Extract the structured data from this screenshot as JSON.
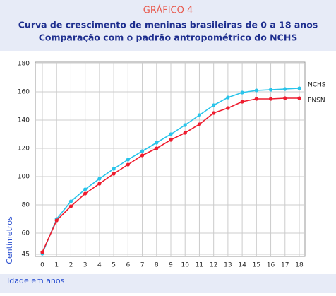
{
  "chart_data": {
    "type": "line",
    "header": "GRÁFICO 4",
    "title": "Curva de crescimento de meninas brasileiras de 0 a 18 anos",
    "subtitle": "Comparação com o padrão antropométrico do NCHS",
    "ylabel": "Centímetros",
    "xlabel": "Idade em anos",
    "x": [
      0,
      1,
      2,
      3,
      4,
      5,
      6,
      7,
      8,
      9,
      10,
      11,
      12,
      13,
      14,
      15,
      16,
      17,
      18
    ],
    "xlim": [
      0,
      18
    ],
    "xticks": [
      0,
      1,
      2,
      3,
      4,
      5,
      6,
      7,
      8,
      9,
      10,
      11,
      12,
      13,
      14,
      15,
      16,
      17,
      18
    ],
    "ylim": [
      45,
      180
    ],
    "yticks": [
      45,
      60,
      80,
      100,
      120,
      140,
      160,
      180
    ],
    "grid": true,
    "series": [
      {
        "name": "NCHS",
        "color": "#29c4ea",
        "values": [
          45.5,
          70,
          82.5,
          91,
          98.5,
          105.5,
          112,
          118,
          124,
          130,
          136.5,
          143.5,
          150.5,
          156,
          159.5,
          161,
          161.5,
          162,
          162.5
        ]
      },
      {
        "name": "PNSN",
        "color": "#ee1c2e",
        "values": [
          46.5,
          69,
          79,
          88,
          95,
          102,
          108.5,
          115,
          120,
          126,
          131,
          137,
          145,
          148.5,
          153,
          155,
          155,
          155.5,
          155.5
        ]
      }
    ]
  }
}
